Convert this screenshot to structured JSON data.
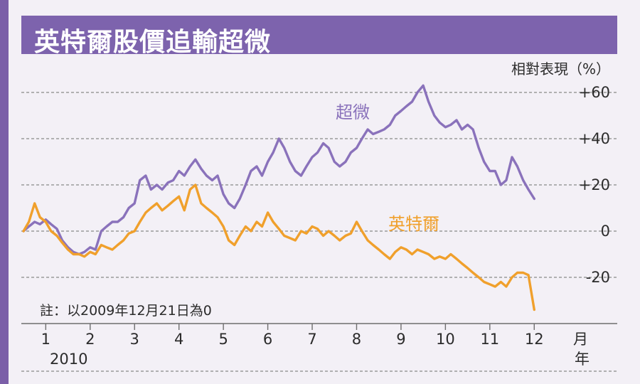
{
  "chart_data": {
    "type": "line",
    "title": "英特爾股價追輸超微",
    "ylabel": "相對表現（%）",
    "ylim": [
      -40,
      65
    ],
    "yticks": [
      {
        "value": 60,
        "label": "+60"
      },
      {
        "value": 40,
        "label": "+40"
      },
      {
        "value": 20,
        "label": "+20"
      },
      {
        "value": 0,
        "label": "0"
      },
      {
        "value": -20,
        "label": "-20"
      }
    ],
    "xlim": [
      0.45,
      12.3
    ],
    "xticks": [
      "1",
      "2",
      "3",
      "4",
      "5",
      "6",
      "7",
      "8",
      "9",
      "10",
      "11",
      "12"
    ],
    "xunit": "月",
    "year_label": "2010",
    "year_unit": "年",
    "note": "註：以2009年12月21日為0",
    "grid": true,
    "series": [
      {
        "name": "超微",
        "color": "#8a72bb",
        "points": [
          [
            0.5,
            0
          ],
          [
            0.62,
            2
          ],
          [
            0.75,
            4
          ],
          [
            0.87,
            3
          ],
          [
            1.0,
            5
          ],
          [
            1.12,
            3
          ],
          [
            1.25,
            1
          ],
          [
            1.37,
            -4
          ],
          [
            1.5,
            -7
          ],
          [
            1.62,
            -9
          ],
          [
            1.75,
            -10
          ],
          [
            1.87,
            -9
          ],
          [
            2.0,
            -7
          ],
          [
            2.12,
            -8
          ],
          [
            2.25,
            0
          ],
          [
            2.37,
            2
          ],
          [
            2.5,
            4
          ],
          [
            2.62,
            4
          ],
          [
            2.75,
            6
          ],
          [
            2.87,
            10
          ],
          [
            3.0,
            12
          ],
          [
            3.12,
            22
          ],
          [
            3.25,
            24
          ],
          [
            3.37,
            18
          ],
          [
            3.5,
            20
          ],
          [
            3.62,
            18
          ],
          [
            3.75,
            21
          ],
          [
            3.87,
            22
          ],
          [
            4.0,
            26
          ],
          [
            4.12,
            24
          ],
          [
            4.25,
            28
          ],
          [
            4.37,
            31
          ],
          [
            4.5,
            27
          ],
          [
            4.62,
            24
          ],
          [
            4.75,
            22
          ],
          [
            4.87,
            24
          ],
          [
            5.0,
            16
          ],
          [
            5.12,
            12
          ],
          [
            5.25,
            10
          ],
          [
            5.37,
            14
          ],
          [
            5.5,
            20
          ],
          [
            5.62,
            26
          ],
          [
            5.75,
            28
          ],
          [
            5.87,
            24
          ],
          [
            6.0,
            30
          ],
          [
            6.12,
            34
          ],
          [
            6.25,
            40
          ],
          [
            6.37,
            36
          ],
          [
            6.5,
            30
          ],
          [
            6.62,
            26
          ],
          [
            6.75,
            24
          ],
          [
            6.87,
            28
          ],
          [
            7.0,
            32
          ],
          [
            7.12,
            34
          ],
          [
            7.25,
            38
          ],
          [
            7.37,
            36
          ],
          [
            7.5,
            30
          ],
          [
            7.62,
            28
          ],
          [
            7.75,
            30
          ],
          [
            7.87,
            34
          ],
          [
            8.0,
            36
          ],
          [
            8.12,
            40
          ],
          [
            8.25,
            44
          ],
          [
            8.37,
            42
          ],
          [
            8.5,
            43
          ],
          [
            8.62,
            44
          ],
          [
            8.75,
            46
          ],
          [
            8.87,
            50
          ],
          [
            9.0,
            52
          ],
          [
            9.12,
            54
          ],
          [
            9.25,
            56
          ],
          [
            9.37,
            60
          ],
          [
            9.5,
            63
          ],
          [
            9.62,
            56
          ],
          [
            9.75,
            50
          ],
          [
            9.87,
            47
          ],
          [
            10.0,
            45
          ],
          [
            10.12,
            46
          ],
          [
            10.25,
            48
          ],
          [
            10.37,
            44
          ],
          [
            10.5,
            46
          ],
          [
            10.62,
            44
          ],
          [
            10.75,
            36
          ],
          [
            10.87,
            30
          ],
          [
            11.0,
            26
          ],
          [
            11.12,
            26
          ],
          [
            11.25,
            20
          ],
          [
            11.37,
            22
          ],
          [
            11.5,
            32
          ],
          [
            11.62,
            28
          ],
          [
            11.75,
            22
          ],
          [
            11.87,
            18
          ],
          [
            12.0,
            14
          ]
        ]
      },
      {
        "name": "英特爾",
        "color": "#f0a02c",
        "points": [
          [
            0.5,
            0
          ],
          [
            0.62,
            4
          ],
          [
            0.75,
            12
          ],
          [
            0.87,
            6
          ],
          [
            1.0,
            4
          ],
          [
            1.12,
            0
          ],
          [
            1.25,
            -2
          ],
          [
            1.37,
            -5
          ],
          [
            1.5,
            -8
          ],
          [
            1.62,
            -10
          ],
          [
            1.75,
            -10
          ],
          [
            1.87,
            -11
          ],
          [
            2.0,
            -9
          ],
          [
            2.12,
            -10
          ],
          [
            2.25,
            -6
          ],
          [
            2.37,
            -7
          ],
          [
            2.5,
            -8
          ],
          [
            2.62,
            -6
          ],
          [
            2.75,
            -4
          ],
          [
            2.87,
            -1
          ],
          [
            3.0,
            0
          ],
          [
            3.12,
            4
          ],
          [
            3.25,
            8
          ],
          [
            3.37,
            10
          ],
          [
            3.5,
            12
          ],
          [
            3.62,
            9
          ],
          [
            3.75,
            11
          ],
          [
            3.87,
            13
          ],
          [
            4.0,
            15
          ],
          [
            4.12,
            9
          ],
          [
            4.25,
            18
          ],
          [
            4.37,
            20
          ],
          [
            4.5,
            12
          ],
          [
            4.62,
            10
          ],
          [
            4.75,
            8
          ],
          [
            4.87,
            6
          ],
          [
            5.0,
            2
          ],
          [
            5.12,
            -4
          ],
          [
            5.25,
            -6
          ],
          [
            5.37,
            -2
          ],
          [
            5.5,
            2
          ],
          [
            5.62,
            0
          ],
          [
            5.75,
            4
          ],
          [
            5.87,
            2
          ],
          [
            6.0,
            8
          ],
          [
            6.12,
            4
          ],
          [
            6.25,
            1
          ],
          [
            6.37,
            -2
          ],
          [
            6.5,
            -3
          ],
          [
            6.62,
            -4
          ],
          [
            6.75,
            0
          ],
          [
            6.87,
            -1
          ],
          [
            7.0,
            2
          ],
          [
            7.12,
            1
          ],
          [
            7.25,
            -2
          ],
          [
            7.37,
            0
          ],
          [
            7.5,
            -2
          ],
          [
            7.62,
            -4
          ],
          [
            7.75,
            -2
          ],
          [
            7.87,
            -1
          ],
          [
            8.0,
            4
          ],
          [
            8.12,
            0
          ],
          [
            8.25,
            -4
          ],
          [
            8.37,
            -6
          ],
          [
            8.5,
            -8
          ],
          [
            8.62,
            -10
          ],
          [
            8.75,
            -12
          ],
          [
            8.87,
            -9
          ],
          [
            9.0,
            -7
          ],
          [
            9.12,
            -8
          ],
          [
            9.25,
            -10
          ],
          [
            9.37,
            -8
          ],
          [
            9.5,
            -9
          ],
          [
            9.62,
            -10
          ],
          [
            9.75,
            -12
          ],
          [
            9.87,
            -11
          ],
          [
            10.0,
            -12
          ],
          [
            10.12,
            -10
          ],
          [
            10.25,
            -12
          ],
          [
            10.37,
            -14
          ],
          [
            10.5,
            -16
          ],
          [
            10.62,
            -18
          ],
          [
            10.75,
            -20
          ],
          [
            10.87,
            -22
          ],
          [
            11.0,
            -23
          ],
          [
            11.12,
            -24
          ],
          [
            11.25,
            -22
          ],
          [
            11.37,
            -24
          ],
          [
            11.5,
            -20
          ],
          [
            11.62,
            -18
          ],
          [
            11.75,
            -18
          ],
          [
            11.87,
            -19
          ],
          [
            12.0,
            -34
          ]
        ]
      }
    ]
  }
}
